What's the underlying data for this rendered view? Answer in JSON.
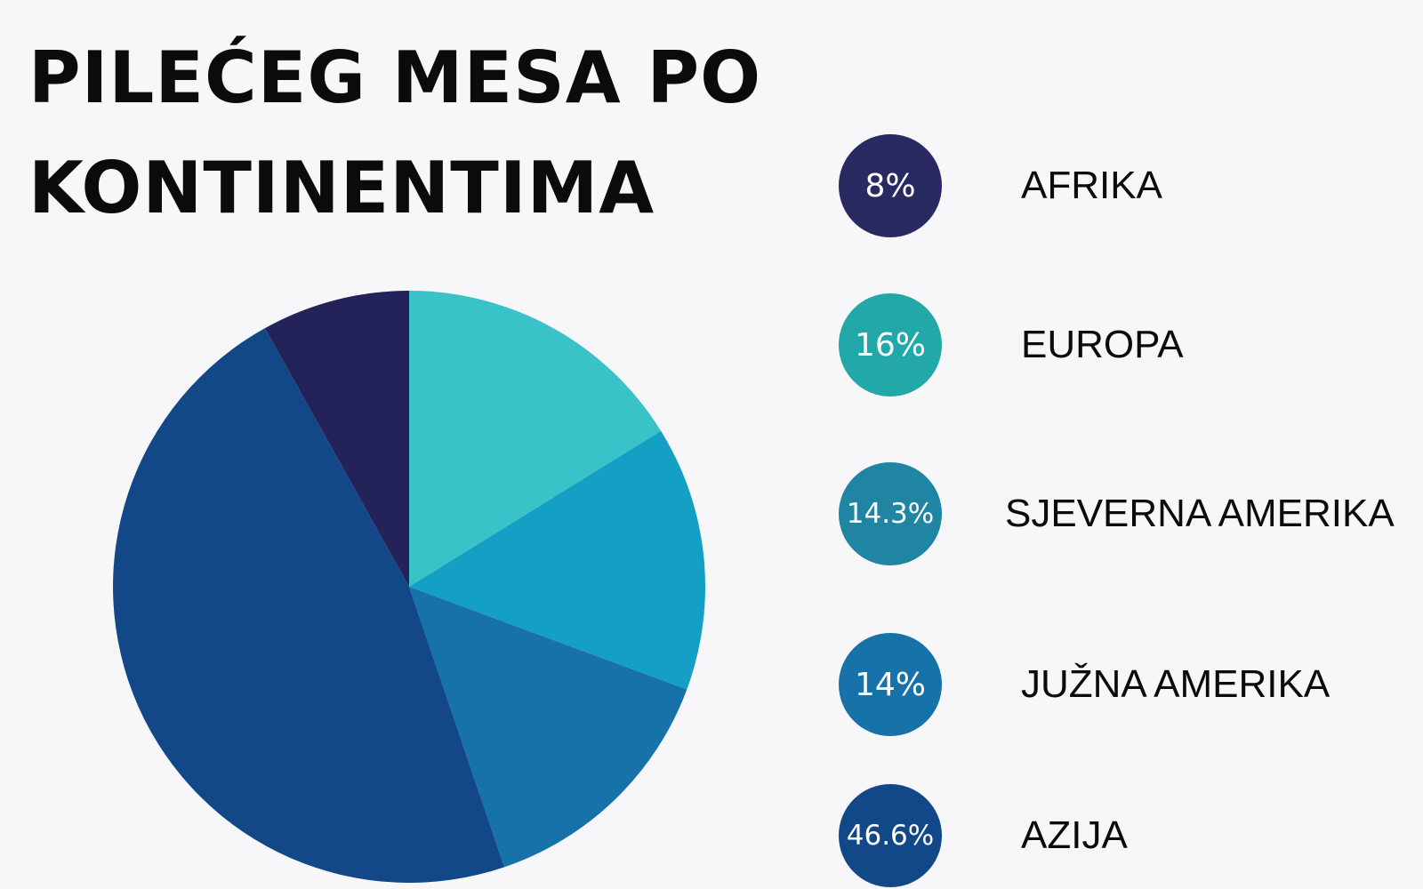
{
  "chart_data": {
    "type": "pie",
    "title": "PILEĆEG MESA PO KONTINENTIMA",
    "title_lines": [
      "PILEĆEG MESA PO",
      "KONTINENTIMA"
    ],
    "slices": [
      {
        "label": "AFRIKA",
        "value": 8,
        "display": "8%",
        "color": "#23235a"
      },
      {
        "label": "EUROPA",
        "value": 16,
        "display": "16%",
        "color": "#3ac2c9"
      },
      {
        "label": "SJEVERNA AMERIKA",
        "value": 14.3,
        "display": "14.3%",
        "color": "#13a0c4"
      },
      {
        "label": "JUŽNA AMERIKA",
        "value": 14,
        "display": "14%",
        "color": "#1672a8"
      },
      {
        "label": "AZIJA",
        "value": 46.6,
        "display": "46.6%",
        "color": "#124887"
      }
    ],
    "legend": {
      "placement": "right",
      "items": [
        {
          "value_text": "8%",
          "label": "AFRIKA",
          "color": "#2a2a63"
        },
        {
          "value_text": "16%",
          "label": "EUROPA",
          "color": "#22a8a8"
        },
        {
          "value_text": "14.3%",
          "label": "SJEVERNA AMERIKA",
          "color": "#1f85a3"
        },
        {
          "value_text": "14%",
          "label": "JUŽNA AMERIKA",
          "color": "#1672a8"
        },
        {
          "value_text": "46.6%",
          "label": "AZIJA",
          "color": "#124887"
        }
      ]
    }
  },
  "colors": {
    "background": "#f7f7f9",
    "text": "#0b0b0d"
  }
}
